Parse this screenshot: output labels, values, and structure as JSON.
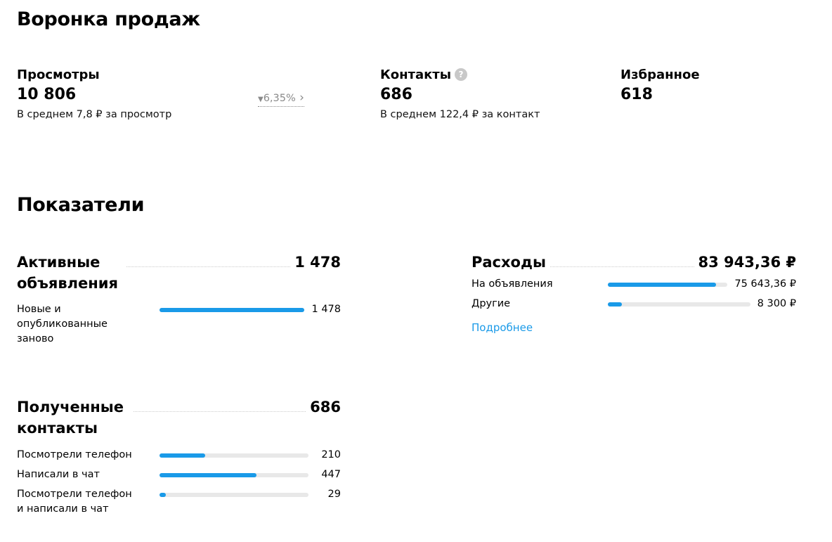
{
  "header": {
    "title": "Воронка продаж"
  },
  "funnel": [
    {
      "label": "Просмотры",
      "value": "10 806",
      "change": "6,35%",
      "note": "В среднем 7,8 ₽ за просмотр"
    },
    {
      "label": "Контакты",
      "value": "686",
      "note": "В среднем 122,4 ₽ за контакт"
    },
    {
      "label": "Избранное",
      "value": "618"
    }
  ],
  "metrics": {
    "title": "Показатели",
    "cards": [
      {
        "title": "Активные объявления",
        "total": 1478,
        "total_label": "1 478",
        "rows": [
          {
            "label": "Новые и опубликованные заново",
            "value": 1478,
            "value_label": "1 478"
          }
        ]
      },
      {
        "title": "Полученные контакты",
        "total": 686,
        "rows": [
          {
            "label": "Посмотрели телефон",
            "value": 210
          },
          {
            "label": "Написали в чат",
            "value": 447
          },
          {
            "label": "Посмотрели телефон и написали в чат",
            "value": 29
          }
        ]
      },
      {
        "title": "Расходы",
        "total": 83943.36,
        "total_label": "83 943,36 ₽",
        "rows": [
          {
            "label": "На объявления",
            "value": 75643.36,
            "value_label": "75 643,36 ₽"
          },
          {
            "label": "Другие",
            "value": 8300,
            "value_label": "8 300 ₽"
          }
        ],
        "link": "Подробнее"
      }
    ]
  }
}
